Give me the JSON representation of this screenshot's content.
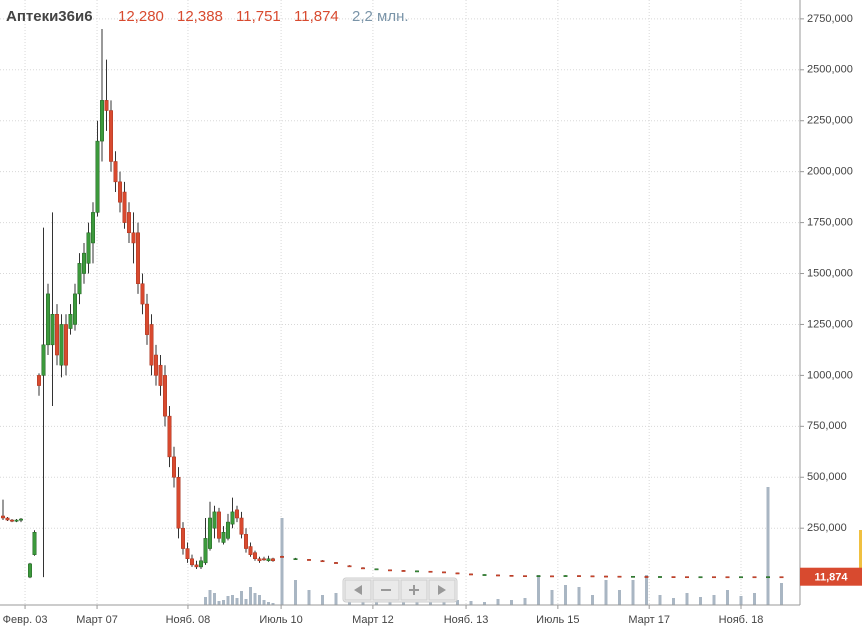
{
  "chart_data": {
    "type": "candlestick",
    "title": "Аптеки36и6",
    "ohlc_labels": [
      "12,280",
      "12,388",
      "11,751",
      "11,874"
    ],
    "volume_label": "2,2 млн.",
    "x": [
      0,
      1,
      2,
      3,
      4,
      6,
      7,
      8,
      9,
      10,
      11,
      12,
      13,
      14,
      15,
      16,
      17,
      18,
      19,
      20,
      21,
      22,
      23,
      24,
      25,
      26,
      27,
      28,
      29,
      30,
      31,
      32,
      33,
      34,
      35,
      36,
      37,
      38,
      39,
      40,
      41,
      42,
      43,
      44,
      45,
      46,
      47,
      48,
      49,
      50,
      51,
      52,
      53,
      54,
      55,
      56,
      57,
      58,
      59,
      60,
      62,
      65,
      68,
      71,
      74,
      77,
      80,
      83,
      86,
      89,
      92,
      95,
      98,
      101,
      104,
      107,
      110,
      113,
      116,
      119,
      122,
      125,
      128,
      131,
      134,
      137,
      140,
      143,
      146,
      149,
      152,
      155,
      158,
      161,
      164,
      167,
      170,
      173
    ],
    "open": [
      310000,
      300000,
      290000,
      285000,
      290000,
      10000,
      120000,
      1000000,
      1000000,
      1150000,
      1150000,
      1300000,
      1050000,
      1250000,
      1230000,
      1250000,
      1400000,
      1500000,
      1550000,
      1650000,
      1800000,
      2150000,
      2350000,
      2300000,
      2050000,
      1950000,
      1900000,
      1800000,
      1700000,
      1700000,
      1450000,
      1350000,
      1250000,
      1100000,
      1050000,
      1000000,
      800000,
      600000,
      500000,
      250000,
      150000,
      100000,
      70000,
      60000,
      80000,
      150000,
      250000,
      330000,
      180000,
      200000,
      270000,
      340000,
      300000,
      220000,
      160000,
      130000,
      100000,
      100000,
      90000,
      100000,
      112000,
      100000,
      97000,
      91000,
      82000,
      66000,
      56000,
      50000,
      46000,
      43000,
      40000,
      39000,
      36000,
      31000,
      26000,
      22000,
      21000,
      19000,
      17500,
      16800,
      16500,
      17000,
      17800,
      16500,
      15500,
      14800,
      14000,
      13500,
      13000,
      12800,
      12500,
      12300,
      12400,
      12200,
      12100,
      12300,
      12200,
      12280
    ],
    "high": [
      390000,
      305000,
      295000,
      295000,
      300000,
      80000,
      240000,
      1010000,
      1725000,
      1450000,
      1800000,
      1350000,
      1300000,
      1300000,
      1350000,
      1450000,
      1600000,
      1650000,
      1750000,
      1850000,
      2250000,
      2700000,
      2550000,
      2350000,
      2100000,
      2000000,
      1950000,
      1850000,
      1800000,
      1750000,
      1500000,
      1400000,
      1300000,
      1150000,
      1100000,
      1050000,
      850000,
      650000,
      550000,
      280000,
      180000,
      120000,
      90000,
      110000,
      300000,
      380000,
      360000,
      350000,
      260000,
      320000,
      400000,
      360000,
      330000,
      250000,
      180000,
      140000,
      110000,
      110000,
      115000,
      105000,
      115000,
      104000,
      99000,
      93000,
      84000,
      68000,
      58000,
      52000,
      47000,
      44000,
      42000,
      40000,
      37000,
      32000,
      27000,
      23500,
      22000,
      19500,
      18000,
      17800,
      17000,
      19000,
      18200,
      17000,
      16000,
      15200,
      14600,
      13800,
      13600,
      13000,
      12700,
      12600,
      12500,
      12500,
      12600,
      12400,
      12700,
      12388
    ],
    "low": [
      290000,
      285000,
      280000,
      280000,
      280000,
      5000,
      115000,
      900000,
      10000,
      1100000,
      850000,
      1050000,
      990000,
      1000000,
      1200000,
      1220000,
      1350000,
      1450000,
      1500000,
      1550000,
      1780000,
      2050000,
      2200000,
      2000000,
      1900000,
      1800000,
      1720000,
      1650000,
      1550000,
      1400000,
      1300000,
      1150000,
      1000000,
      950000,
      900000,
      750000,
      550000,
      450000,
      200000,
      120000,
      80000,
      60000,
      50000,
      50000,
      70000,
      140000,
      200000,
      180000,
      170000,
      190000,
      250000,
      280000,
      200000,
      130000,
      110000,
      90000,
      80000,
      90000,
      85000,
      85000,
      108000,
      98000,
      93000,
      88000,
      79000,
      63000,
      54000,
      48000,
      44000,
      41000,
      39000,
      37000,
      34000,
      29000,
      24000,
      21000,
      19500,
      17500,
      16500,
      16500,
      15500,
      16800,
      16800,
      15500,
      14500,
      13800,
      13500,
      12800,
      12700,
      12300,
      12100,
      12000,
      11900,
      11900,
      12000,
      11900,
      12100,
      11751
    ],
    "close": [
      300000,
      290000,
      285000,
      290000,
      295000,
      75000,
      230000,
      950000,
      1150000,
      1400000,
      1300000,
      1100000,
      1250000,
      1050000,
      1300000,
      1400000,
      1550000,
      1600000,
      1700000,
      1800000,
      2150000,
      2350000,
      2300000,
      2050000,
      1950000,
      1850000,
      1750000,
      1700000,
      1650000,
      1450000,
      1350000,
      1200000,
      1050000,
      1000000,
      950000,
      800000,
      600000,
      500000,
      250000,
      150000,
      100000,
      70000,
      60000,
      90000,
      200000,
      300000,
      330000,
      200000,
      230000,
      280000,
      330000,
      300000,
      220000,
      150000,
      120000,
      100000,
      90000,
      95000,
      100000,
      90000,
      110000,
      101000,
      95000,
      90000,
      80000,
      65000,
      55000,
      51000,
      45000,
      42000,
      41000,
      38000,
      35000,
      30000,
      25000,
      23000,
      20000,
      18000,
      17000,
      17500,
      16000,
      18000,
      17000,
      16000,
      15000,
      14000,
      14200,
      13000,
      13300,
      12500,
      12400,
      12300,
      12200,
      12100,
      12300,
      12200,
      12500,
      11874
    ],
    "volume": [
      null,
      null,
      null,
      null,
      null,
      null,
      null,
      null,
      null,
      null,
      null,
      null,
      null,
      null,
      null,
      null,
      null,
      null,
      null,
      null,
      null,
      null,
      null,
      null,
      null,
      null,
      null,
      null,
      null,
      null,
      null,
      null,
      null,
      null,
      null,
      null,
      null,
      null,
      null,
      null,
      null,
      null,
      null,
      null,
      800000,
      1500000,
      1200000,
      400000,
      500000,
      900000,
      1000000,
      700000,
      1400000,
      600000,
      1800000,
      1200000,
      1000000,
      500000,
      300000,
      200000,
      8700000,
      2500000,
      1500000,
      1000000,
      1200000,
      800000,
      700000,
      900000,
      1500000,
      600000,
      400000,
      700000,
      300000,
      500000,
      400000,
      300000,
      600000,
      500000,
      700000,
      3000000,
      1500000,
      2000000,
      1800000,
      1000000,
      2500000,
      1500000,
      2500000,
      3000000,
      1000000,
      700000,
      1200000,
      800000,
      1000000,
      1500000,
      900000,
      1200000,
      11800000,
      2200000
    ],
    "up_color": "#3c9a3c",
    "down_color": "#d84a2f",
    "volume_color": "#a9b6c3",
    "xlim": [
      0,
      176
    ],
    "xticks": [
      {
        "value": 4.9,
        "label": "Февр. 03"
      },
      {
        "value": 20.9,
        "label": "Март 07"
      },
      {
        "value": 41.1,
        "label": "Нояб. 08"
      },
      {
        "value": 61.8,
        "label": "Июль 10"
      },
      {
        "value": 82.2,
        "label": "Март 12"
      },
      {
        "value": 102.9,
        "label": "Нояб. 13"
      },
      {
        "value": 123.3,
        "label": "Июль 15"
      },
      {
        "value": 143.6,
        "label": "Март 17"
      },
      {
        "value": 164.0,
        "label": "Нояб. 18"
      }
    ],
    "ylim": [
      -127000,
      2818000
    ],
    "yticks": [
      {
        "value": 250000,
        "label": "250,000"
      },
      {
        "value": 500000,
        "label": "500,000"
      },
      {
        "value": 750000,
        "label": "750,000"
      },
      {
        "value": 1000000,
        "label": "1000,000"
      },
      {
        "value": 1250000,
        "label": "1250,000"
      },
      {
        "value": 1500000,
        "label": "1500,000"
      },
      {
        "value": 1750000,
        "label": "1750,000"
      },
      {
        "value": 2000000,
        "label": "2000,000"
      },
      {
        "value": 2250000,
        "label": "2250,000"
      },
      {
        "value": 2500000,
        "label": "2500,000"
      },
      {
        "value": 2750000,
        "label": "2750,000"
      }
    ],
    "volume_lim": [
      0,
      14000000
    ],
    "grid": true
  }
}
